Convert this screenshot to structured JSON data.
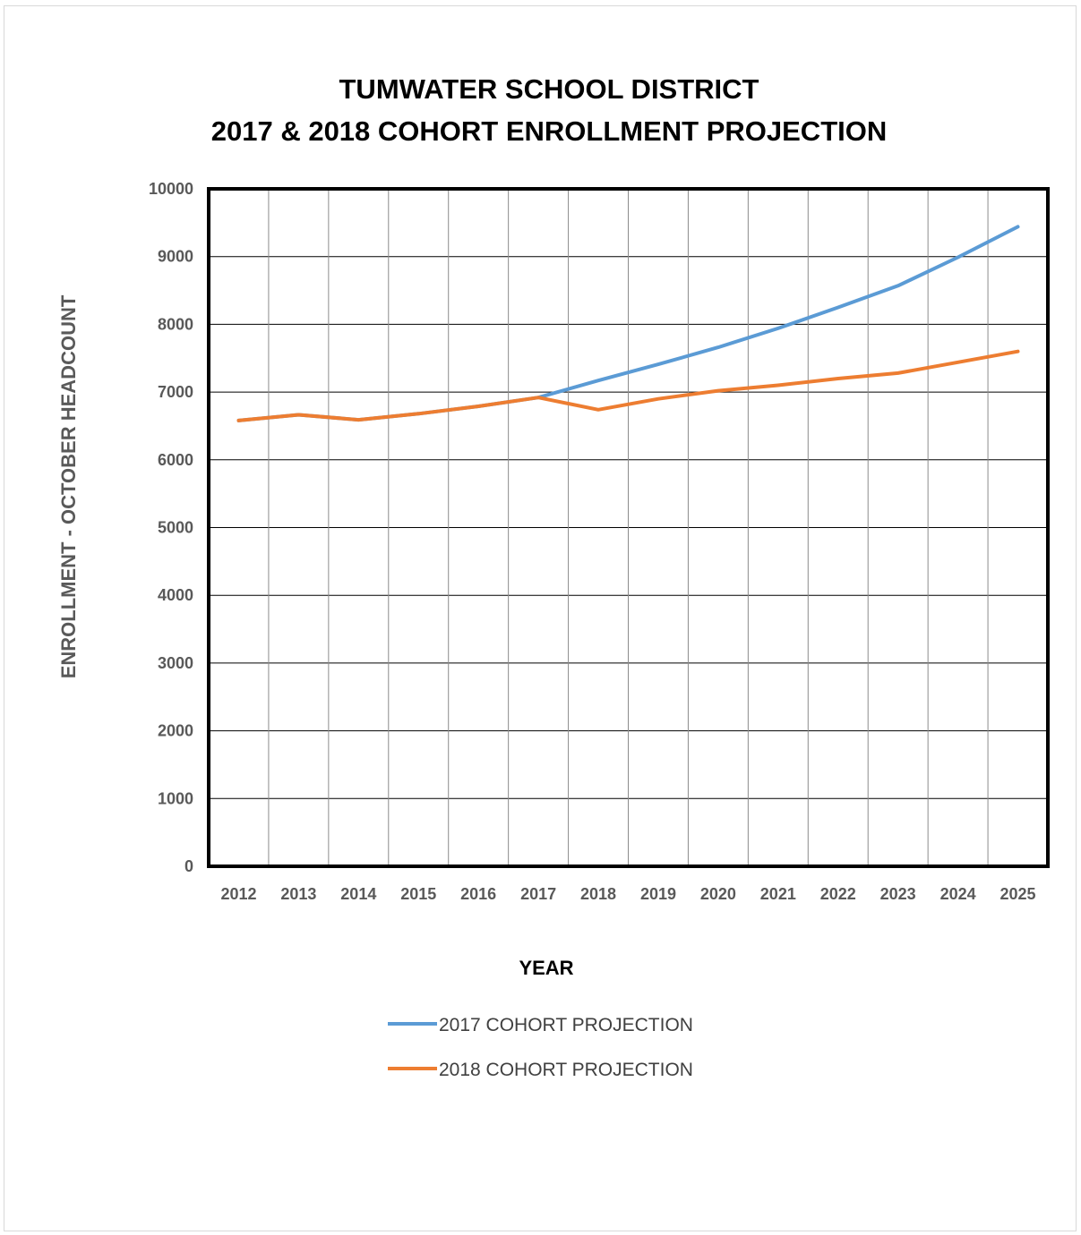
{
  "chart_data": {
    "type": "line",
    "title": "TUMWATER SCHOOL DISTRICT",
    "subtitle": "2017 & 2018 COHORT ENROLLMENT PROJECTION",
    "xlabel": "YEAR",
    "ylabel": "ENROLLMENT - OCTOBER HEADCOUNT",
    "ylim": [
      0,
      10000
    ],
    "yticks": [
      "0",
      "1000",
      "2000",
      "3000",
      "4000",
      "5000",
      "6000",
      "7000",
      "8000",
      "9000",
      "10000"
    ],
    "categories": [
      "2012",
      "2013",
      "2014",
      "2015",
      "2016",
      "2017",
      "2018",
      "2019",
      "2020",
      "2021",
      "2022",
      "2023",
      "2024",
      "2025"
    ],
    "grid": true,
    "legend_position": "bottom",
    "series": [
      {
        "name": "2017 COHORT PROJECTION",
        "color": "#5B9BD5",
        "values": [
          6580,
          6665,
          6590,
          6680,
          6790,
          6920,
          7170,
          7410,
          7660,
          7940,
          8250,
          8570,
          8990,
          9440
        ]
      },
      {
        "name": "2018 COHORT PROJECTION",
        "color": "#ED7D31",
        "values": [
          6580,
          6665,
          6590,
          6680,
          6790,
          6920,
          6740,
          6900,
          7020,
          7100,
          7200,
          7280,
          7440,
          7600
        ]
      }
    ]
  }
}
